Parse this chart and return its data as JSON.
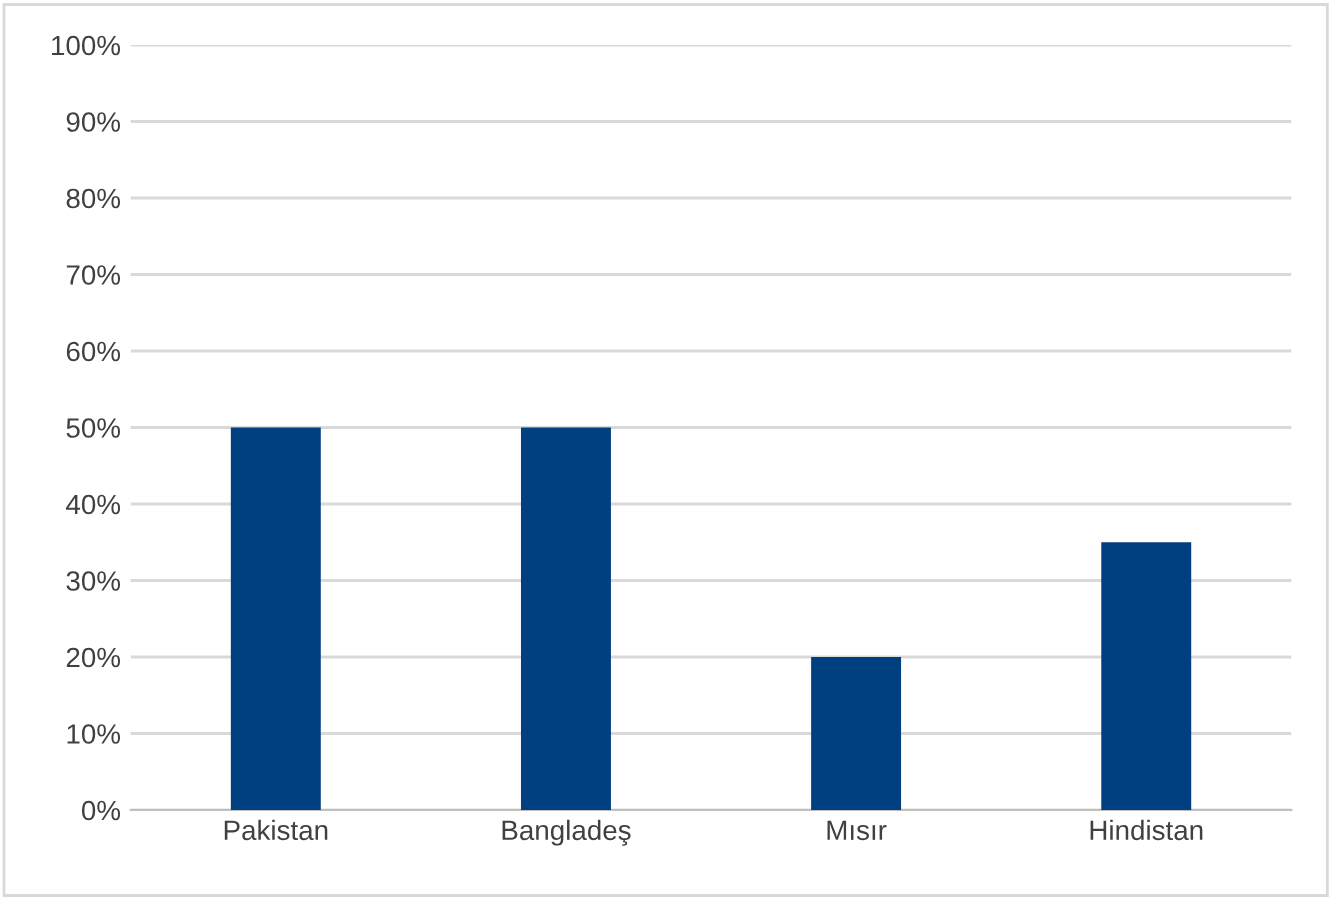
{
  "chart_data": {
    "type": "bar",
    "categories": [
      "Pakistan",
      "Bangladeş",
      "Mısır",
      "Hindistan"
    ],
    "values": [
      50,
      50,
      20,
      35
    ],
    "color": "#003f80",
    "ylim": [
      0,
      100
    ],
    "yticks": [
      {
        "value": 0,
        "label": "0%"
      },
      {
        "value": 10,
        "label": "10%"
      },
      {
        "value": 20,
        "label": "20%"
      },
      {
        "value": 30,
        "label": "30%"
      },
      {
        "value": 40,
        "label": "40%"
      },
      {
        "value": 50,
        "label": "50%"
      },
      {
        "value": 60,
        "label": "60%"
      },
      {
        "value": 70,
        "label": "70%"
      },
      {
        "value": 80,
        "label": "80%"
      },
      {
        "value": 90,
        "label": "90%"
      },
      {
        "value": 100,
        "label": "100%"
      }
    ],
    "grid": "y",
    "legend": false
  }
}
